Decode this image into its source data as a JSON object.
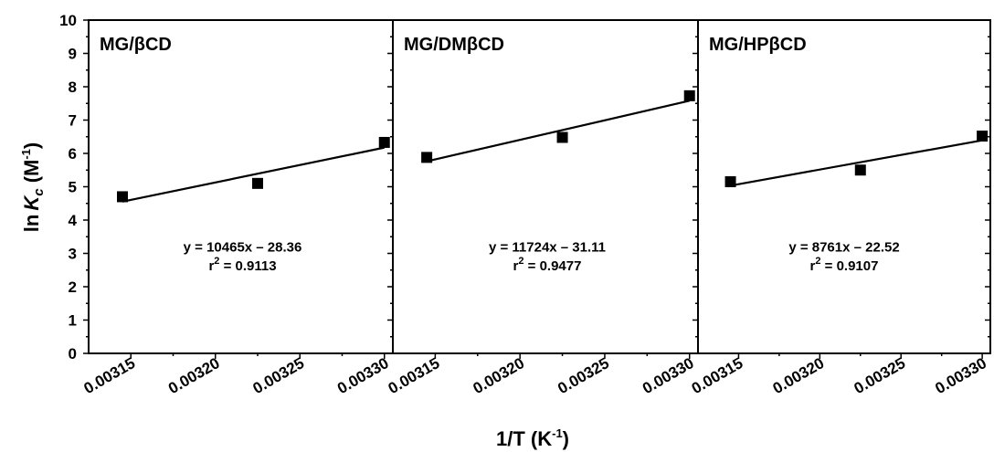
{
  "chart_data": {
    "type": "scatter",
    "xlabel": {
      "main": "1/T (K",
      "sup": "-1",
      "tail": ")"
    },
    "ylabel": {
      "prefix": "ln",
      "var": "K",
      "sub": "c",
      "unit": " (M",
      "sup": "-1",
      "tail": ")"
    },
    "ylim": [
      0,
      10
    ],
    "yticks": [
      "0",
      "1",
      "2",
      "3",
      "4",
      "5",
      "6",
      "7",
      "8",
      "9",
      "10"
    ],
    "xlim": [
      0.003125,
      0.003305
    ],
    "xticks": [
      "0.00315",
      "0.00320",
      "0.00325",
      "0.00330"
    ],
    "grid": false,
    "panels": [
      {
        "title": "MG/βCD",
        "points": [
          {
            "x": 0.003145,
            "y": 4.7
          },
          {
            "x": 0.003225,
            "y": 5.1
          },
          {
            "x": 0.0033,
            "y": 6.33
          }
        ],
        "fit": {
          "slope": 10465,
          "intercept": -28.36
        },
        "equation": "y = 10465x – 28.36",
        "r2_label": "r",
        "r2_sup": "2",
        "r2_value": " = 0.9113"
      },
      {
        "title": "MG/DMβCD",
        "points": [
          {
            "x": 0.003145,
            "y": 5.88
          },
          {
            "x": 0.003225,
            "y": 6.48
          },
          {
            "x": 0.0033,
            "y": 7.73
          }
        ],
        "fit": {
          "slope": 11724,
          "intercept": -31.11
        },
        "equation": "y = 11724x – 31.11",
        "r2_label": "r",
        "r2_sup": "2",
        "r2_value": " = 0.9477"
      },
      {
        "title": "MG/HPβCD",
        "points": [
          {
            "x": 0.003145,
            "y": 5.15
          },
          {
            "x": 0.003225,
            "y": 5.5
          },
          {
            "x": 0.0033,
            "y": 6.52
          }
        ],
        "fit": {
          "slope": 8761,
          "intercept": -22.52
        },
        "equation": "y = 8761x – 22.52",
        "r2_label": "r",
        "r2_sup": "2",
        "r2_value": " = 0.9107"
      }
    ]
  }
}
